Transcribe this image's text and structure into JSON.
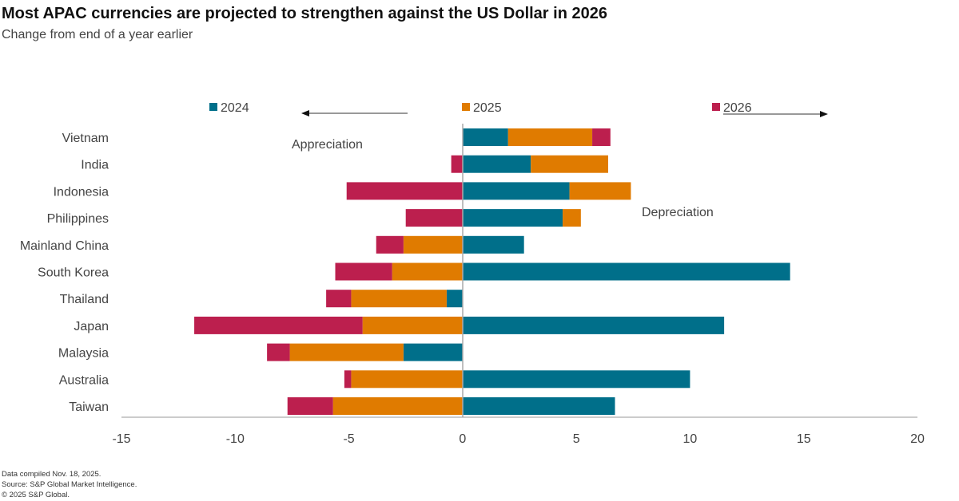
{
  "header": {
    "title": "Most APAC currencies are projected to strengthen against the US Dollar in 2026",
    "subtitle": "Change from end of a year earlier"
  },
  "footer": {
    "line1": "Data compiled Nov. 18, 2025.",
    "line2": "Source: S&P Global Market Intelligence.",
    "line3": "© 2025 S&P Global."
  },
  "chart_data": {
    "type": "bar",
    "orientation": "horizontal",
    "stacked": true,
    "title": "Most APAC currencies are projected to strengthen against the US Dollar in 2026",
    "subtitle": "Change from end of a year earlier",
    "categories": [
      "Vietnam",
      "India",
      "Indonesia",
      "Philippines",
      "Mainland China",
      "South Korea",
      "Thailand",
      "Japan",
      "Malaysia",
      "Australia",
      "Taiwan"
    ],
    "series": [
      {
        "name": "2024",
        "color": "#006F8A",
        "values": [
          2.0,
          3.0,
          4.7,
          4.4,
          2.7,
          14.4,
          -0.7,
          11.5,
          -2.6,
          10.0,
          6.7
        ]
      },
      {
        "name": "2025",
        "color": "#E07B00",
        "values": [
          3.7,
          3.4,
          2.7,
          0.8,
          -2.6,
          -3.1,
          -4.2,
          -4.4,
          -5.0,
          -4.9,
          -5.7
        ]
      },
      {
        "name": "2026",
        "color": "#BC1F4E",
        "values": [
          0.8,
          -0.5,
          -5.1,
          -2.5,
          -1.2,
          -2.5,
          -1.1,
          -7.4,
          -1.0,
          -0.3,
          -2.0
        ]
      }
    ],
    "xlim": [
      -15,
      20
    ],
    "xticks": [
      "-15",
      "-10",
      "-5",
      "0",
      "5",
      "10",
      "15",
      "20"
    ],
    "xtick_values": [
      -15,
      -10,
      -5,
      0,
      5,
      10,
      15,
      20
    ],
    "annotations": {
      "left": "Appreciation",
      "right": "Depreciation"
    },
    "legend_placement": "top",
    "grid": false
  }
}
